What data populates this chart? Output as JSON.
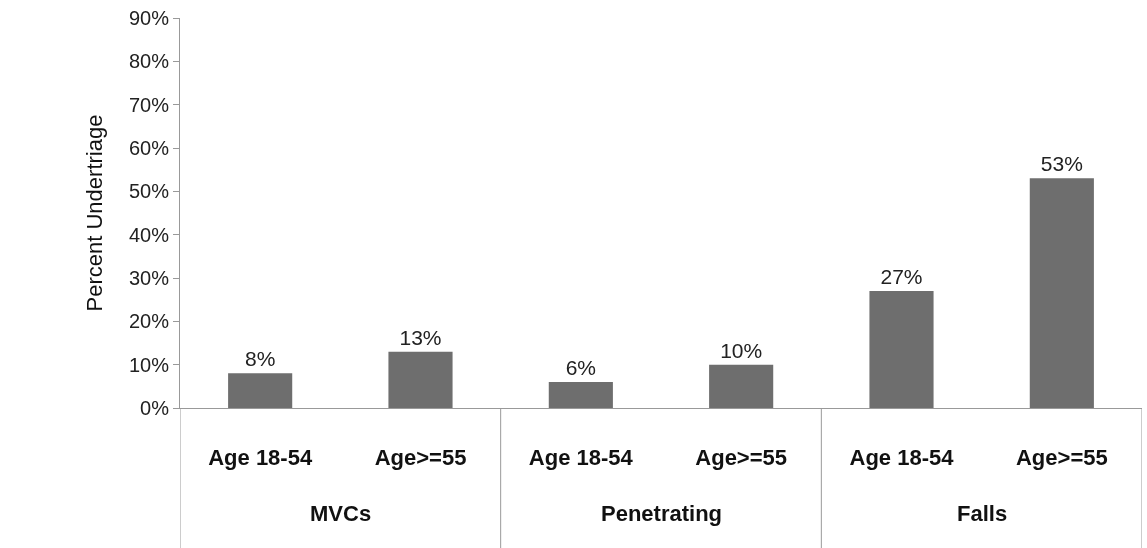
{
  "chart_data": {
    "type": "bar",
    "ylabel": "Percent Undertriage",
    "categories": [
      "Age 18-54",
      "Age>=55",
      "Age 18-54",
      "Age>=55",
      "Age 18-54",
      "Age>=55"
    ],
    "values": [
      8,
      13,
      6,
      10,
      27,
      53
    ],
    "value_labels": [
      "8%",
      "13%",
      "6%",
      "10%",
      "27%",
      "53%"
    ],
    "color": "#6e6e6e",
    "ylim": [
      0,
      90
    ],
    "yticks": [
      {
        "value": 0,
        "label": "0%"
      },
      {
        "value": 10,
        "label": "10%"
      },
      {
        "value": 20,
        "label": "20%"
      },
      {
        "value": 30,
        "label": "30%"
      },
      {
        "value": 40,
        "label": "40%"
      },
      {
        "value": 50,
        "label": "50%"
      },
      {
        "value": 60,
        "label": "60%"
      },
      {
        "value": 70,
        "label": "70%"
      },
      {
        "value": 80,
        "label": "80%"
      },
      {
        "value": 90,
        "label": "90%"
      }
    ],
    "annotations": [
      "MVCs",
      "Penetrating",
      "Falls"
    ]
  }
}
